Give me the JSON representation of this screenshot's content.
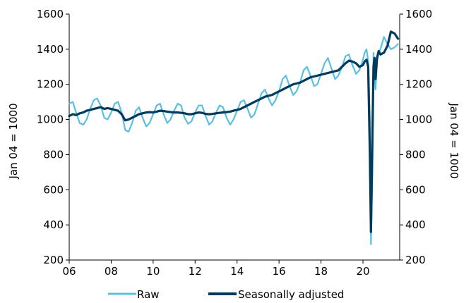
{
  "chart_data": {
    "type": "line",
    "title": "",
    "xlabel": "",
    "ylabel_left": "Jan 04 = 1000",
    "ylabel_right": "Jan 04 = 1000",
    "xlim": [
      2006,
      2021.75
    ],
    "ylim": [
      200,
      1600
    ],
    "x_ticks": [
      2006,
      2008,
      2010,
      2012,
      2014,
      2016,
      2018,
      2020
    ],
    "x_tick_labels": [
      "06",
      "08",
      "10",
      "12",
      "14",
      "16",
      "18",
      "20"
    ],
    "y_ticks": [
      200,
      400,
      600,
      800,
      1000,
      1200,
      1400,
      1600
    ],
    "y_tick_labels": [
      "200",
      "400",
      "600",
      "800",
      "1000",
      "1200",
      "1400",
      "1600"
    ],
    "grid": false,
    "legend_position": "bottom",
    "series": [
      {
        "name": "Raw",
        "color": "#5bc0e0",
        "points": [
          [
            2006.0,
            1090
          ],
          [
            2006.17,
            1100
          ],
          [
            2006.33,
            1040
          ],
          [
            2006.5,
            980
          ],
          [
            2006.67,
            970
          ],
          [
            2006.83,
            1000
          ],
          [
            2007.0,
            1060
          ],
          [
            2007.17,
            1110
          ],
          [
            2007.33,
            1120
          ],
          [
            2007.5,
            1080
          ],
          [
            2007.67,
            1010
          ],
          [
            2007.83,
            1000
          ],
          [
            2008.0,
            1040
          ],
          [
            2008.17,
            1090
          ],
          [
            2008.33,
            1100
          ],
          [
            2008.5,
            1040
          ],
          [
            2008.67,
            940
          ],
          [
            2008.83,
            930
          ],
          [
            2009.0,
            980
          ],
          [
            2009.17,
            1050
          ],
          [
            2009.33,
            1070
          ],
          [
            2009.5,
            1010
          ],
          [
            2009.67,
            960
          ],
          [
            2009.83,
            980
          ],
          [
            2010.0,
            1030
          ],
          [
            2010.17,
            1080
          ],
          [
            2010.33,
            1090
          ],
          [
            2010.5,
            1030
          ],
          [
            2010.67,
            980
          ],
          [
            2010.83,
            1000
          ],
          [
            2011.0,
            1050
          ],
          [
            2011.17,
            1090
          ],
          [
            2011.33,
            1080
          ],
          [
            2011.5,
            1010
          ],
          [
            2011.67,
            975
          ],
          [
            2011.83,
            990
          ],
          [
            2012.0,
            1040
          ],
          [
            2012.17,
            1080
          ],
          [
            2012.33,
            1080
          ],
          [
            2012.5,
            1020
          ],
          [
            2012.67,
            970
          ],
          [
            2012.83,
            990
          ],
          [
            2013.0,
            1040
          ],
          [
            2013.17,
            1080
          ],
          [
            2013.33,
            1070
          ],
          [
            2013.5,
            1010
          ],
          [
            2013.67,
            970
          ],
          [
            2013.83,
            1000
          ],
          [
            2014.0,
            1050
          ],
          [
            2014.17,
            1100
          ],
          [
            2014.33,
            1110
          ],
          [
            2014.5,
            1060
          ],
          [
            2014.67,
            1010
          ],
          [
            2014.83,
            1030
          ],
          [
            2015.0,
            1090
          ],
          [
            2015.17,
            1150
          ],
          [
            2015.33,
            1170
          ],
          [
            2015.5,
            1120
          ],
          [
            2015.67,
            1080
          ],
          [
            2015.83,
            1110
          ],
          [
            2016.0,
            1160
          ],
          [
            2016.17,
            1230
          ],
          [
            2016.33,
            1250
          ],
          [
            2016.5,
            1190
          ],
          [
            2016.67,
            1140
          ],
          [
            2016.83,
            1160
          ],
          [
            2017.0,
            1210
          ],
          [
            2017.17,
            1280
          ],
          [
            2017.33,
            1300
          ],
          [
            2017.5,
            1250
          ],
          [
            2017.67,
            1190
          ],
          [
            2017.83,
            1200
          ],
          [
            2018.0,
            1260
          ],
          [
            2018.17,
            1320
          ],
          [
            2018.33,
            1350
          ],
          [
            2018.5,
            1290
          ],
          [
            2018.67,
            1230
          ],
          [
            2018.83,
            1250
          ],
          [
            2019.0,
            1300
          ],
          [
            2019.17,
            1360
          ],
          [
            2019.33,
            1370
          ],
          [
            2019.5,
            1310
          ],
          [
            2019.67,
            1260
          ],
          [
            2019.83,
            1280
          ],
          [
            2020.0,
            1340
          ],
          [
            2020.08,
            1380
          ],
          [
            2020.17,
            1400
          ],
          [
            2020.25,
            1330
          ],
          [
            2020.33,
            1000
          ],
          [
            2020.38,
            290
          ],
          [
            2020.45,
            700
          ],
          [
            2020.5,
            1380
          ],
          [
            2020.55,
            1250
          ],
          [
            2020.6,
            1170
          ],
          [
            2020.67,
            1330
          ],
          [
            2020.75,
            1380
          ],
          [
            2020.83,
            1400
          ],
          [
            2021.0,
            1470
          ],
          [
            2021.17,
            1430
          ],
          [
            2021.33,
            1400
          ],
          [
            2021.5,
            1410
          ],
          [
            2021.67,
            1430
          ]
        ]
      },
      {
        "name": "Seasonally adjusted",
        "color": "#003a5c",
        "points": [
          [
            2006.0,
            1020
          ],
          [
            2006.17,
            1030
          ],
          [
            2006.33,
            1025
          ],
          [
            2006.5,
            1035
          ],
          [
            2006.67,
            1040
          ],
          [
            2006.83,
            1050
          ],
          [
            2007.0,
            1055
          ],
          [
            2007.17,
            1060
          ],
          [
            2007.33,
            1065
          ],
          [
            2007.5,
            1070
          ],
          [
            2007.67,
            1060
          ],
          [
            2007.83,
            1065
          ],
          [
            2008.0,
            1060
          ],
          [
            2008.17,
            1055
          ],
          [
            2008.33,
            1050
          ],
          [
            2008.5,
            1030
          ],
          [
            2008.67,
            995
          ],
          [
            2008.83,
            1000
          ],
          [
            2009.0,
            1010
          ],
          [
            2009.17,
            1020
          ],
          [
            2009.33,
            1030
          ],
          [
            2009.5,
            1035
          ],
          [
            2009.67,
            1040
          ],
          [
            2009.83,
            1042
          ],
          [
            2010.0,
            1040
          ],
          [
            2010.17,
            1045
          ],
          [
            2010.33,
            1050
          ],
          [
            2010.5,
            1048
          ],
          [
            2010.67,
            1045
          ],
          [
            2010.83,
            1042
          ],
          [
            2011.0,
            1040
          ],
          [
            2011.17,
            1040
          ],
          [
            2011.33,
            1038
          ],
          [
            2011.5,
            1035
          ],
          [
            2011.67,
            1030
          ],
          [
            2011.83,
            1030
          ],
          [
            2012.0,
            1035
          ],
          [
            2012.17,
            1040
          ],
          [
            2012.33,
            1038
          ],
          [
            2012.5,
            1032
          ],
          [
            2012.67,
            1030
          ],
          [
            2012.83,
            1032
          ],
          [
            2013.0,
            1035
          ],
          [
            2013.17,
            1038
          ],
          [
            2013.33,
            1040
          ],
          [
            2013.5,
            1042
          ],
          [
            2013.67,
            1045
          ],
          [
            2013.83,
            1050
          ],
          [
            2014.0,
            1055
          ],
          [
            2014.17,
            1060
          ],
          [
            2014.33,
            1070
          ],
          [
            2014.5,
            1080
          ],
          [
            2014.67,
            1090
          ],
          [
            2014.83,
            1100
          ],
          [
            2015.0,
            1110
          ],
          [
            2015.17,
            1120
          ],
          [
            2015.33,
            1130
          ],
          [
            2015.5,
            1135
          ],
          [
            2015.67,
            1140
          ],
          [
            2015.83,
            1150
          ],
          [
            2016.0,
            1160
          ],
          [
            2016.17,
            1170
          ],
          [
            2016.33,
            1180
          ],
          [
            2016.5,
            1190
          ],
          [
            2016.67,
            1200
          ],
          [
            2016.83,
            1205
          ],
          [
            2017.0,
            1210
          ],
          [
            2017.17,
            1220
          ],
          [
            2017.33,
            1230
          ],
          [
            2017.5,
            1240
          ],
          [
            2017.67,
            1245
          ],
          [
            2017.83,
            1250
          ],
          [
            2018.0,
            1255
          ],
          [
            2018.17,
            1260
          ],
          [
            2018.33,
            1265
          ],
          [
            2018.5,
            1270
          ],
          [
            2018.67,
            1275
          ],
          [
            2018.83,
            1280
          ],
          [
            2019.0,
            1300
          ],
          [
            2019.17,
            1320
          ],
          [
            2019.33,
            1335
          ],
          [
            2019.5,
            1330
          ],
          [
            2019.67,
            1320
          ],
          [
            2019.83,
            1300
          ],
          [
            2020.0,
            1310
          ],
          [
            2020.08,
            1330
          ],
          [
            2020.17,
            1340
          ],
          [
            2020.25,
            1300
          ],
          [
            2020.33,
            800
          ],
          [
            2020.38,
            360
          ],
          [
            2020.45,
            900
          ],
          [
            2020.5,
            1300
          ],
          [
            2020.55,
            1350
          ],
          [
            2020.6,
            1230
          ],
          [
            2020.67,
            1350
          ],
          [
            2020.75,
            1390
          ],
          [
            2020.83,
            1370
          ],
          [
            2021.0,
            1380
          ],
          [
            2021.17,
            1420
          ],
          [
            2021.33,
            1500
          ],
          [
            2021.5,
            1490
          ],
          [
            2021.67,
            1460
          ]
        ]
      }
    ]
  }
}
